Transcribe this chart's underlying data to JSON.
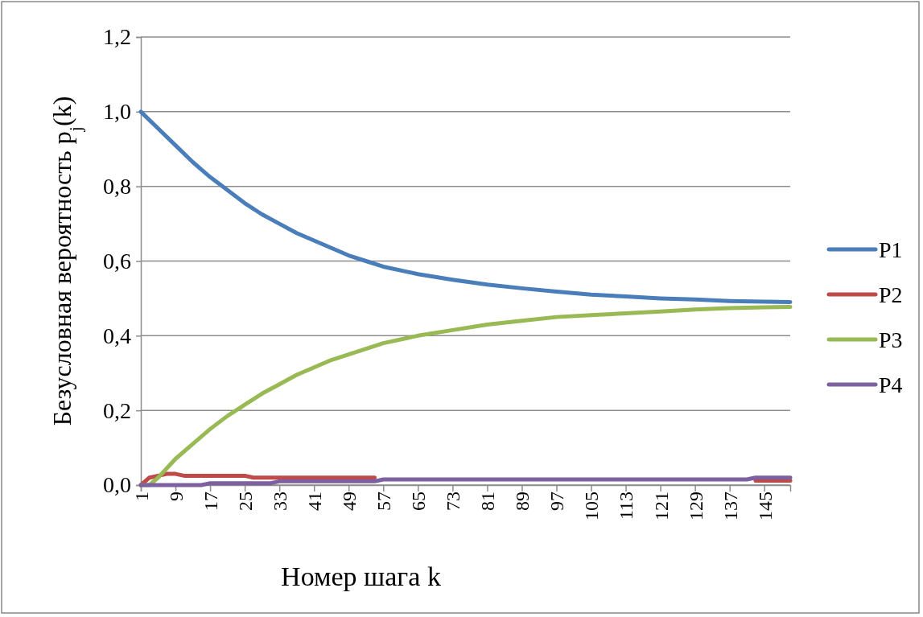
{
  "chart_data": {
    "type": "line",
    "xlabel": "Номер шага k",
    "ylabel": "Безусловная вероятность p$_{j}$(k)",
    "xlim": [
      1,
      151
    ],
    "xticks": [
      1,
      9,
      17,
      25,
      33,
      41,
      49,
      57,
      65,
      73,
      81,
      89,
      97,
      105,
      113,
      121,
      129,
      137,
      145
    ],
    "ylim": [
      0,
      1.2
    ],
    "yticks": [
      {
        "value": 0,
        "label": "0,0"
      },
      {
        "value": 0.2,
        "label": "0,2"
      },
      {
        "value": 0.4,
        "label": "0,4"
      },
      {
        "value": 0.6,
        "label": "0,6"
      },
      {
        "value": 0.8,
        "label": "0,8"
      },
      {
        "value": 1,
        "label": "1,0"
      },
      {
        "value": 1.2,
        "label": "1,2"
      }
    ],
    "grid": "y",
    "legend": "right",
    "marker": "none",
    "line_style": "solid",
    "series": [
      {
        "name": "P1",
        "color": "#4a7ebb",
        "x": [
          1,
          5,
          9,
          13,
          17,
          21,
          25,
          29,
          33,
          37,
          41,
          45,
          49,
          53,
          57,
          65,
          73,
          81,
          89,
          97,
          105,
          113,
          121,
          129,
          137,
          145,
          151
        ],
        "values": [
          1.0,
          0.955,
          0.91,
          0.865,
          0.825,
          0.79,
          0.755,
          0.725,
          0.7,
          0.675,
          0.655,
          0.635,
          0.615,
          0.6,
          0.585,
          0.565,
          0.55,
          0.537,
          0.527,
          0.518,
          0.51,
          0.505,
          0.5,
          0.497,
          0.493,
          0.491,
          0.49
        ]
      },
      {
        "name": "P2",
        "color": "#be4b48",
        "x": [
          1,
          3,
          7,
          9,
          11,
          25,
          27,
          55,
          57,
          141,
          143,
          151
        ],
        "values": [
          0,
          0.02,
          0.03,
          0.03,
          0.025,
          0.025,
          0.02,
          0.02,
          null,
          null,
          0.012,
          0.012
        ]
      },
      {
        "name": "P3",
        "color": "#98b954",
        "x": [
          1,
          3,
          5,
          9,
          13,
          17,
          21,
          25,
          29,
          33,
          37,
          41,
          45,
          49,
          57,
          65,
          73,
          81,
          89,
          97,
          105,
          113,
          121,
          129,
          137,
          145,
          151
        ],
        "values": [
          0,
          0,
          0.02,
          0.07,
          0.11,
          0.15,
          0.185,
          0.215,
          0.245,
          0.27,
          0.295,
          0.315,
          0.335,
          0.35,
          0.38,
          0.4,
          0.415,
          0.43,
          0.44,
          0.45,
          0.455,
          0.46,
          0.465,
          0.47,
          0.474,
          0.476,
          0.477
        ]
      },
      {
        "name": "P4",
        "color": "#7d60a0",
        "x": [
          1,
          15,
          17,
          31,
          33,
          55,
          57,
          141,
          143,
          151
        ],
        "values": [
          0,
          0,
          0.005,
          0.005,
          0.01,
          0.01,
          0.015,
          0.015,
          0.02,
          0.02
        ]
      }
    ]
  }
}
